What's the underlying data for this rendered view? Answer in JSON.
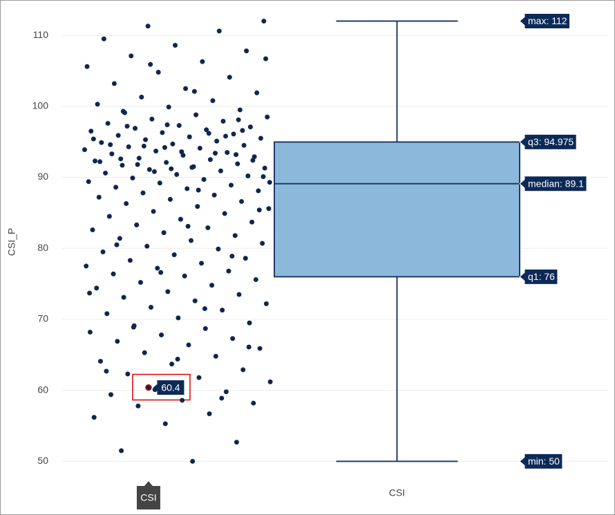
{
  "chart_data": {
    "type": "box",
    "y_label": "CSI_P",
    "categories": [
      "CSI"
    ],
    "ylim": [
      47.8,
      114
    ],
    "yticks": [
      50,
      60,
      70,
      80,
      90,
      100,
      110
    ],
    "grid": true,
    "point_color": "#0f2650",
    "box_color": "#8cb8dc",
    "line_color": "#1f3a66",
    "stats": [
      {
        "label": "max: 112",
        "value": 112
      },
      {
        "label": "q3: 94.975",
        "value": 94.975
      },
      {
        "label": "median: 89.1",
        "value": 89.1
      },
      {
        "label": "q1: 76",
        "value": 76
      },
      {
        "label": "min: 50",
        "value": 50
      }
    ],
    "hover": {
      "point": 0,
      "label": "60.4"
    },
    "values": [
      60.4,
      112,
      50,
      51.5,
      52.7,
      55.3,
      56.2,
      56.7,
      57.8,
      58.2,
      58.6,
      59.4,
      59.8,
      60.1,
      61.2,
      61.8,
      62.3,
      62.9,
      63.7,
      64.1,
      64.8,
      65.3,
      65.9,
      66.4,
      66.9,
      67.3,
      67.8,
      68.2,
      68.7,
      69.1,
      69.5,
      70.2,
      70.8,
      71.3,
      71.7,
      72.2,
      72.6,
      73.1,
      73.5,
      73.9,
      74.4,
      74.8,
      75.2,
      75.6,
      76.1,
      76.4,
      76.8,
      77.2,
      77.5,
      77.9,
      78.3,
      78.6,
      79.1,
      79.5,
      79.9,
      80.3,
      80.7,
      81.1,
      81.4,
      81.8,
      82.2,
      82.6,
      82.9,
      83.3,
      83.7,
      84.1,
      84.5,
      84.9,
      85.2,
      85.6,
      85.9,
      86.3,
      86.6,
      86.9,
      87.2,
      87.5,
      87.8,
      88.1,
      88.4,
      88.6,
      88.9,
      89.2,
      89.4,
      89.7,
      89.9,
      90.2,
      90.4,
      90.6,
      90.9,
      91.1,
      91.3,
      91.5,
      91.7,
      91.9,
      92.1,
      92.3,
      92.5,
      92.7,
      92.9,
      93.1,
      93.3,
      93.5,
      93.7,
      93.9,
      94.1,
      94.3,
      94.5,
      94.7,
      94.9,
      95.1,
      95.3,
      95.5,
      95.7,
      95.9,
      96.1,
      96.3,
      96.5,
      96.7,
      96.9,
      97.1,
      97.3,
      97.6,
      97.9,
      98.2,
      98.5,
      98.8,
      99.1,
      99.5,
      99.9,
      100.3,
      100.8,
      101.3,
      101.9,
      102.5,
      103.2,
      104.1,
      104.8,
      105.6,
      106.3,
      107.1,
      107.8,
      108.6,
      109.5,
      110.6,
      111.3,
      90.1,
      91.4,
      92.6,
      93.2,
      94.2,
      95.4,
      96.2,
      91.8,
      92.4,
      93.6,
      94.6,
      95.8,
      90.8,
      89.3,
      88.2,
      97.2,
      96.6,
      91.2,
      92.2,
      93.4,
      94.4,
      85.4,
      83.1,
      80.5,
      78.9,
      76.6,
      73.7,
      71.5,
      68.9,
      66.1,
      64.4,
      62.7,
      58.9,
      105.9,
      106.7,
      102.1,
      99.3,
      98.1,
      97.4
    ]
  }
}
